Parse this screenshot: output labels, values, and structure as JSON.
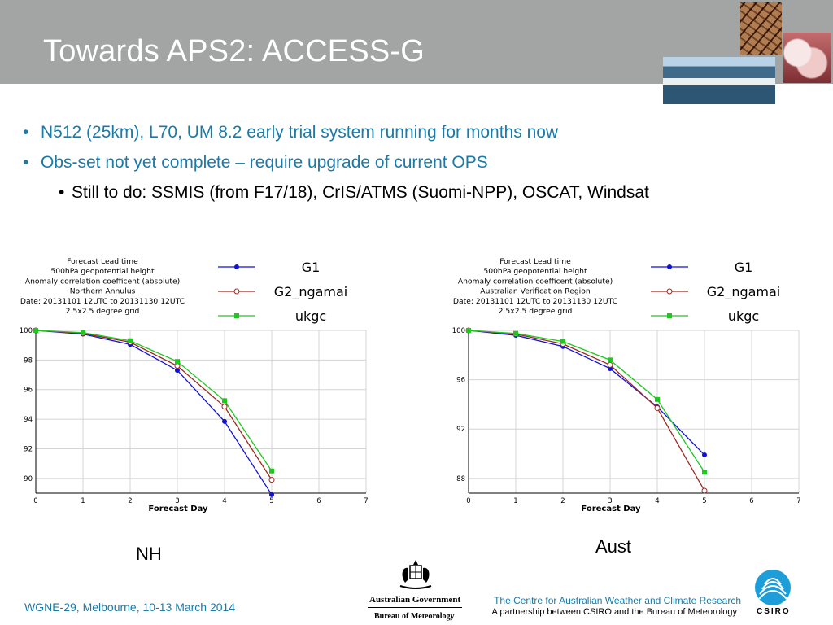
{
  "header": {
    "title": "Towards APS2: ACCESS-G"
  },
  "bullets": [
    {
      "text": "N512 (25km), L70, UM 8.2 early trial system running for months now"
    },
    {
      "text": "Obs-set not yet complete – require upgrade of current OPS"
    }
  ],
  "sub_bullets": [
    {
      "text": "Still to do: SSMIS (from F17/18), CrIS/ATMS (Suomi-NPP), OSCAT, Windsat"
    }
  ],
  "bullet_glyph": "•",
  "captions": {
    "nh": "NH",
    "aust": "Aust"
  },
  "footer": {
    "left": "WGNE-29, Melbourne, 10-13 March 2014",
    "right_line1": "The Centre for Australian Weather and Climate Research",
    "right_line2": "A partnership between CSIRO and the Bureau of Meteorology",
    "gov_name": "Australian Government",
    "gov_bureau": "Bureau of Meteorology",
    "csiro": "CSIRO"
  },
  "chart_data": [
    {
      "type": "line",
      "title_lines": [
        "Forecast Lead time",
        "500hPa geopotential height",
        "Anomaly correlation coefficent (absolute)",
        "Northern Annulus",
        "Date: 20131101 12UTC to 20131130 12UTC",
        "2.5x2.5 degree grid"
      ],
      "xlabel": "Forecast Day",
      "ylabel": "",
      "xlim": [
        0,
        7
      ],
      "ylim": [
        89,
        100
      ],
      "xticks": [
        0,
        1,
        2,
        3,
        4,
        5,
        6,
        7
      ],
      "yticks": [
        90,
        92,
        94,
        96,
        98,
        100
      ],
      "grid": true,
      "legend": "top-right",
      "x": [
        0,
        1,
        2,
        3,
        4,
        5
      ],
      "series": [
        {
          "name": "G1",
          "color": "#1010d8",
          "marker": "filled-circle",
          "values": [
            100,
            99.75,
            99.05,
            97.3,
            93.85,
            88.9
          ]
        },
        {
          "name": "G2_ngamai",
          "color": "#9b2a20",
          "marker": "open-circle",
          "values": [
            100,
            99.8,
            99.2,
            97.6,
            94.85,
            89.9
          ]
        },
        {
          "name": "ukgc",
          "color": "#1ec81e",
          "marker": "filled-square",
          "values": [
            100,
            99.85,
            99.3,
            97.9,
            95.25,
            90.5
          ]
        }
      ]
    },
    {
      "type": "line",
      "title_lines": [
        "Forecast Lead time",
        "500hPa geopotential height",
        "Anomaly correlation coefficent (absolute)",
        "Australian Verification Region",
        "Date: 20131101 12UTC to 20131130 12UTC",
        "2.5x2.5 degree grid"
      ],
      "xlabel": "Forecast Day",
      "ylabel": "",
      "xlim": [
        0,
        7
      ],
      "ylim": [
        86.8,
        100
      ],
      "xticks": [
        0,
        1,
        2,
        3,
        4,
        5,
        6,
        7
      ],
      "yticks": [
        88,
        92,
        96,
        100
      ],
      "grid": true,
      "legend": "top-right",
      "x": [
        0,
        1,
        2,
        3,
        4,
        5
      ],
      "series": [
        {
          "name": "G1",
          "color": "#1010d8",
          "marker": "filled-circle",
          "values": [
            100,
            99.6,
            98.7,
            96.9,
            93.8,
            89.9
          ]
        },
        {
          "name": "G2_ngamai",
          "color": "#9b2a20",
          "marker": "open-circle",
          "values": [
            100,
            99.7,
            98.9,
            97.2,
            93.7,
            87.0
          ]
        },
        {
          "name": "ukgc",
          "color": "#1ec81e",
          "marker": "filled-square",
          "values": [
            100,
            99.75,
            99.1,
            97.6,
            94.4,
            88.5
          ]
        }
      ]
    }
  ]
}
